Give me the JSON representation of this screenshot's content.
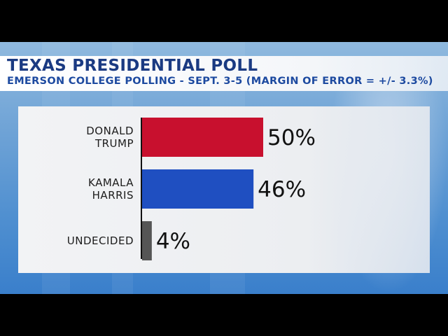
{
  "header": {
    "title": "TEXAS PRESIDENTIAL POLL",
    "subtitle": "EMERSON COLLEGE POLLING - SEPT. 3-5  (MARGIN OF ERROR = +/- 3.3%)"
  },
  "chart_data": {
    "type": "bar",
    "orientation": "horizontal",
    "categories": [
      [
        "DONALD",
        "TRUMP"
      ],
      [
        "KAMALA",
        "HARRIS"
      ],
      [
        "UNDECIDED"
      ]
    ],
    "values": [
      50,
      46,
      4
    ],
    "value_labels": [
      "50%",
      "46%",
      "4%"
    ],
    "colors": [
      "#c8102e",
      "#1f4fc1",
      "#555555"
    ],
    "xlim": [
      0,
      100
    ],
    "grid": false,
    "legend": "none"
  }
}
